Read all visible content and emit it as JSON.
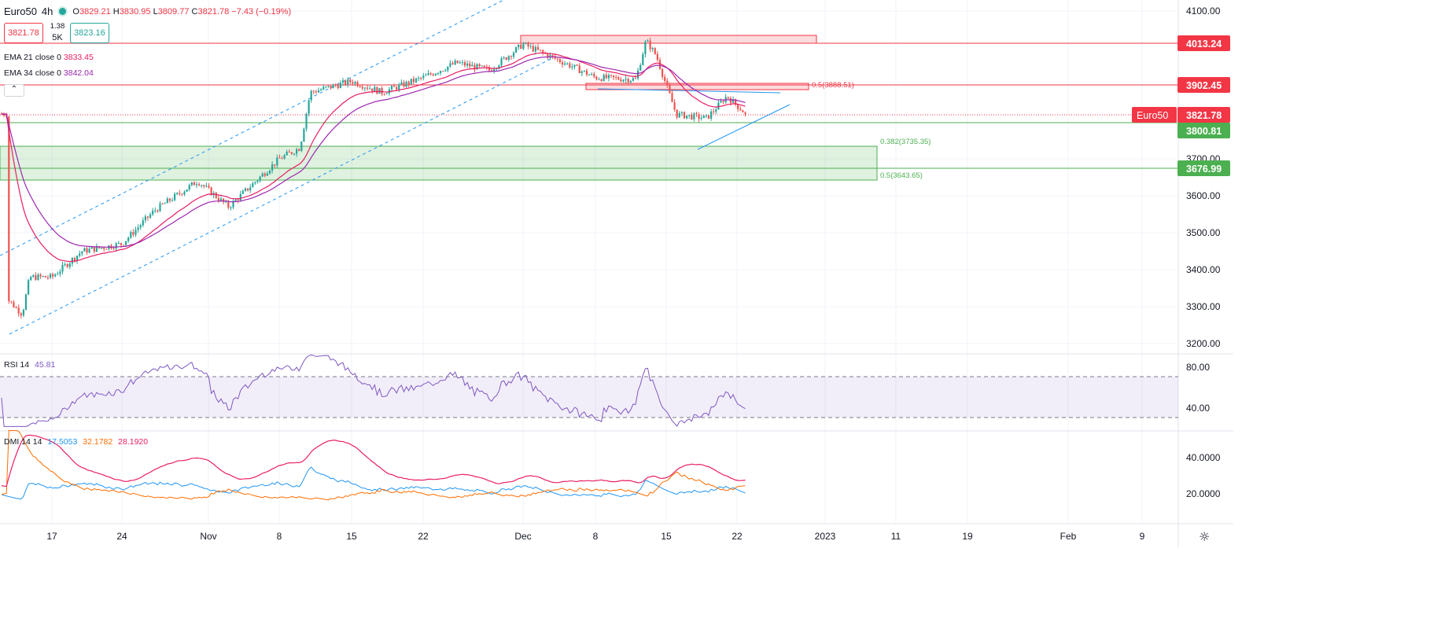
{
  "symbol": "Euro50",
  "timeframe": "4h",
  "ohlc": {
    "o_label": "O",
    "o": "3829.21",
    "h_label": "H",
    "h": "3830.95",
    "l_label": "L",
    "l": "3809.77",
    "c_label": "C",
    "c": "3821.78",
    "change": "−7.43 (−0.19%)"
  },
  "sell_price": "3821.78",
  "buy_price": "3823.16",
  "spread": "1.38",
  "volume": "5K",
  "ema21": {
    "label": "EMA 21 close 0",
    "value": "3833.45",
    "color": "#e91e63"
  },
  "ema34": {
    "label": "EMA 34 close 0",
    "value": "3842.04",
    "color": "#9c27b0"
  },
  "collapse_glyph": "⌃",
  "rsi": {
    "label": "RSI 14",
    "value": "45.81",
    "color": "#7e57c2"
  },
  "dmi": {
    "label": "DMI 14 14",
    "plus": "17.5053",
    "minus": "32.1782",
    "adx": "28.1920",
    "plus_color": "#2196f3",
    "minus_color": "#ff6d00",
    "adx_color": "#e91e63"
  },
  "price_axis_labels": [
    "4100.00",
    "3800.00",
    "3700.00",
    "3600.00",
    "3500.00",
    "3400.00",
    "3300.00",
    "3200.00"
  ],
  "price_badges": [
    {
      "name": "level-4013",
      "text": "4013.24",
      "color": "#f23645"
    },
    {
      "name": "level-3902",
      "text": "3902.45",
      "color": "#f23645"
    },
    {
      "name": "last-price",
      "text": "3821.78",
      "color": "#f23645",
      "tag": "Euro50"
    },
    {
      "name": "level-3800",
      "text": "3800.81",
      "color": "#4caf50"
    },
    {
      "name": "level-3676",
      "text": "3676.99",
      "color": "#4caf50"
    }
  ],
  "fib_labels": [
    "0.5(3888.51)",
    "0.382(3735.35)",
    "0.5(3643.65)"
  ],
  "rsi_axis_labels": [
    "80.00",
    "40.00"
  ],
  "dmi_axis_labels": [
    "40.0000",
    "20.0000"
  ],
  "time_axis_labels": [
    "17",
    "24",
    "Nov",
    "8",
    "15",
    "22",
    "Dec",
    "8",
    "15",
    "22",
    "2023",
    "11",
    "19",
    "Feb",
    "9"
  ],
  "settings_glyph": "☼",
  "chart_data": {
    "type": "candlestick",
    "title": "Euro50, 4h",
    "ylim": [
      3165,
      4130
    ],
    "price_levels": [
      4013.24,
      3902.45,
      3821.78,
      3800.81,
      3676.99
    ],
    "fib_levels": [
      {
        "ratio": 0.5,
        "value": 3888.51
      },
      {
        "ratio": 0.382,
        "value": 3735.35
      },
      {
        "ratio": 0.5,
        "value": 3643.65
      }
    ],
    "close_path": [
      {
        "date": "2022-10-11",
        "close": 3320
      },
      {
        "date": "2022-10-13",
        "close": 3280
      },
      {
        "date": "2022-10-14",
        "close": 3380
      },
      {
        "date": "2022-10-17",
        "close": 3380
      },
      {
        "date": "2022-10-20",
        "close": 3450
      },
      {
        "date": "2022-10-24",
        "close": 3470
      },
      {
        "date": "2022-10-27",
        "close": 3560
      },
      {
        "date": "2022-10-31",
        "close": 3640
      },
      {
        "date": "2022-11-03",
        "close": 3570
      },
      {
        "date": "2022-11-08",
        "close": 3700
      },
      {
        "date": "2022-11-10",
        "close": 3730
      },
      {
        "date": "2022-11-11",
        "close": 3880
      },
      {
        "date": "2022-11-15",
        "close": 3910
      },
      {
        "date": "2022-11-18",
        "close": 3880
      },
      {
        "date": "2022-11-22",
        "close": 3920
      },
      {
        "date": "2022-11-25",
        "close": 3960
      },
      {
        "date": "2022-11-28",
        "close": 3940
      },
      {
        "date": "2022-12-01",
        "close": 4010
      },
      {
        "date": "2022-12-05",
        "close": 3960
      },
      {
        "date": "2022-12-08",
        "close": 3920
      },
      {
        "date": "2022-12-12",
        "close": 3915
      },
      {
        "date": "2022-12-13",
        "close": 4020
      },
      {
        "date": "2022-12-14",
        "close": 3980
      },
      {
        "date": "2022-12-16",
        "close": 3820
      },
      {
        "date": "2022-12-19",
        "close": 3810
      },
      {
        "date": "2022-12-21",
        "close": 3870
      },
      {
        "date": "2022-12-23",
        "close": 3821.78
      }
    ]
  }
}
